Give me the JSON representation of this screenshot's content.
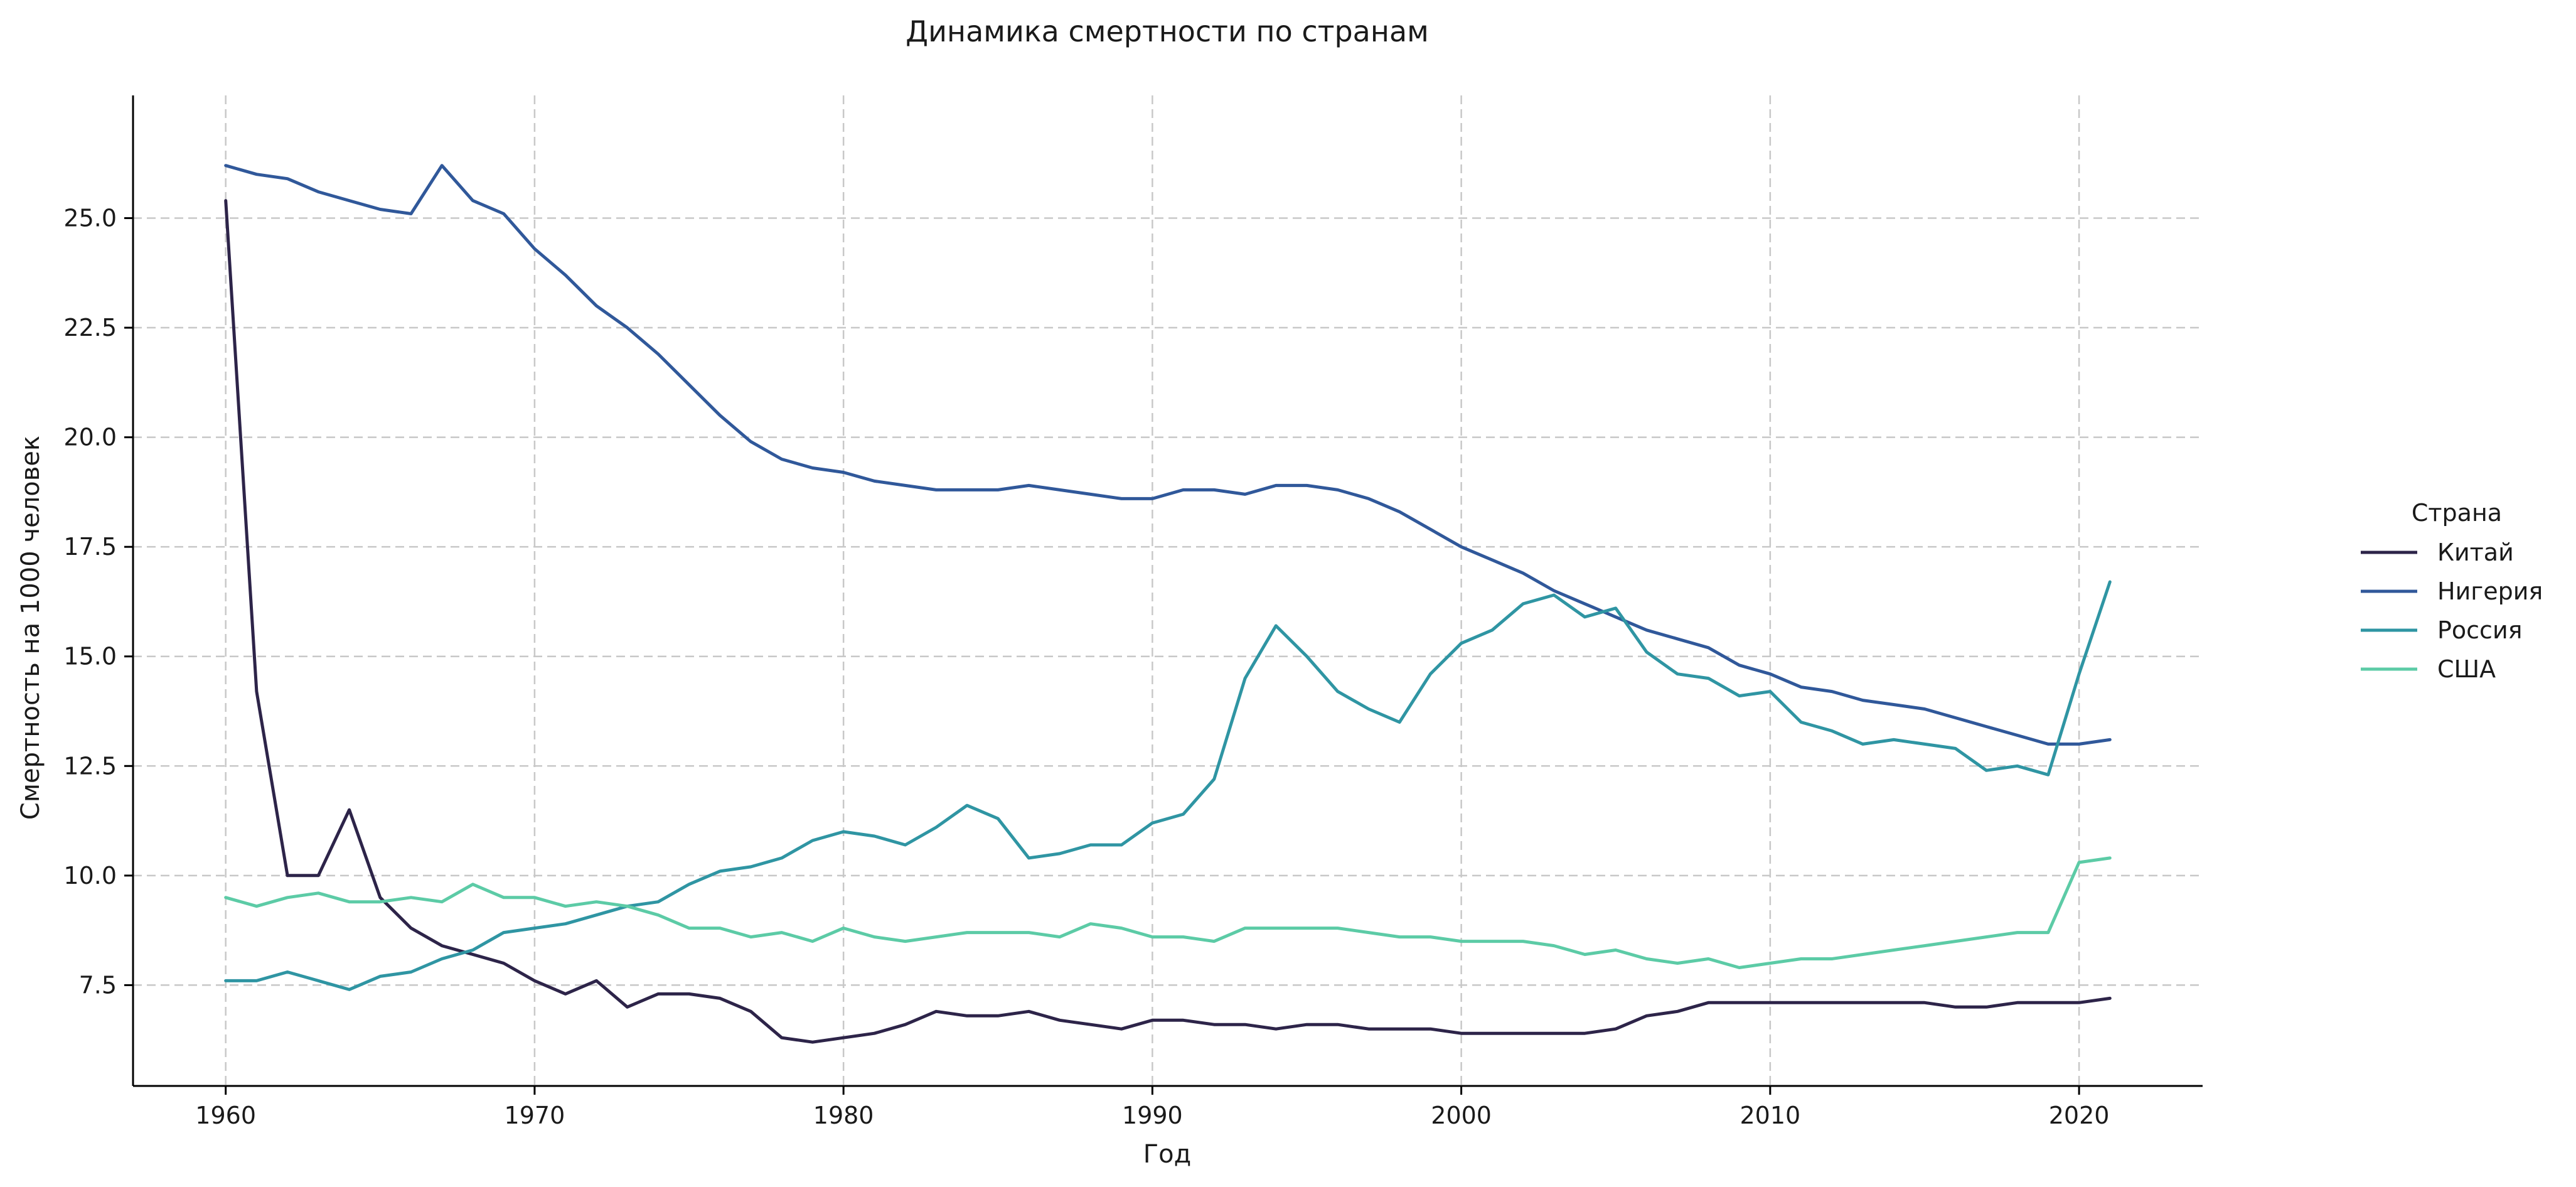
{
  "chart_data": {
    "type": "line",
    "title": "Динамика смертности по странам",
    "xlabel": "Год",
    "ylabel": "Смертность на 1000 человек",
    "xlim": [
      1957,
      2024
    ],
    "ylim": [
      5.2,
      27.8
    ],
    "xticks": [
      1960,
      1970,
      1980,
      1990,
      2000,
      2010,
      2020
    ],
    "yticks": [
      7.5,
      10.0,
      12.5,
      15.0,
      17.5,
      20.0,
      22.5,
      25.0
    ],
    "grid": true,
    "legend": {
      "title": "Страна",
      "placement": "right"
    },
    "x": [
      1960,
      1961,
      1962,
      1963,
      1964,
      1965,
      1966,
      1967,
      1968,
      1969,
      1970,
      1971,
      1972,
      1973,
      1974,
      1975,
      1976,
      1977,
      1978,
      1979,
      1980,
      1981,
      1982,
      1983,
      1984,
      1985,
      1986,
      1987,
      1988,
      1989,
      1990,
      1991,
      1992,
      1993,
      1994,
      1995,
      1996,
      1997,
      1998,
      1999,
      2000,
      2001,
      2002,
      2003,
      2004,
      2005,
      2006,
      2007,
      2008,
      2009,
      2010,
      2011,
      2012,
      2013,
      2014,
      2015,
      2016,
      2017,
      2018,
      2019,
      2020,
      2021
    ],
    "series": [
      {
        "name": "Китай",
        "color": "#2d2449",
        "values": [
          25.4,
          14.2,
          10.0,
          10.0,
          11.5,
          9.5,
          8.8,
          8.4,
          8.2,
          8.0,
          7.6,
          7.3,
          7.6,
          7.0,
          7.3,
          7.3,
          7.2,
          6.9,
          6.3,
          6.2,
          6.3,
          6.4,
          6.6,
          6.9,
          6.8,
          6.8,
          6.9,
          6.7,
          6.6,
          6.5,
          6.7,
          6.7,
          6.6,
          6.6,
          6.5,
          6.6,
          6.6,
          6.5,
          6.5,
          6.5,
          6.4,
          6.4,
          6.4,
          6.4,
          6.4,
          6.5,
          6.8,
          6.9,
          7.1,
          7.1,
          7.1,
          7.1,
          7.1,
          7.1,
          7.1,
          7.1,
          7.0,
          7.0,
          7.1,
          7.1,
          7.1,
          7.2
        ]
      },
      {
        "name": "Нигерия",
        "color": "#30589a",
        "values": [
          26.2,
          26.0,
          25.9,
          25.6,
          25.4,
          25.2,
          25.1,
          26.2,
          25.4,
          25.1,
          24.3,
          23.7,
          23.0,
          22.5,
          21.9,
          21.2,
          20.5,
          19.9,
          19.5,
          19.3,
          19.2,
          19.0,
          18.9,
          18.8,
          18.8,
          18.8,
          18.9,
          18.8,
          18.7,
          18.6,
          18.6,
          18.8,
          18.8,
          18.7,
          18.9,
          18.9,
          18.8,
          18.6,
          18.3,
          17.9,
          17.5,
          17.2,
          16.9,
          16.5,
          16.2,
          15.9,
          15.6,
          15.4,
          15.2,
          14.8,
          14.6,
          14.3,
          14.2,
          14.0,
          13.9,
          13.8,
          13.6,
          13.4,
          13.2,
          13.0,
          13.0,
          13.1
        ]
      },
      {
        "name": "Россия",
        "color": "#2f95a3",
        "values": [
          7.6,
          7.6,
          7.8,
          7.6,
          7.4,
          7.7,
          7.8,
          8.1,
          8.3,
          8.7,
          8.8,
          8.9,
          9.1,
          9.3,
          9.4,
          9.8,
          10.1,
          10.2,
          10.4,
          10.8,
          11.0,
          10.9,
          10.7,
          11.1,
          11.6,
          11.3,
          10.4,
          10.5,
          10.7,
          10.7,
          11.2,
          11.4,
          12.2,
          14.5,
          15.7,
          15.0,
          14.2,
          13.8,
          13.5,
          14.6,
          15.3,
          15.6,
          16.2,
          16.4,
          15.9,
          16.1,
          15.1,
          14.6,
          14.5,
          14.1,
          14.2,
          13.5,
          13.3,
          13.0,
          13.1,
          13.0,
          12.9,
          12.4,
          12.5,
          12.3,
          14.6,
          16.7
        ]
      },
      {
        "name": "США",
        "color": "#5ccba6",
        "values": [
          9.5,
          9.3,
          9.5,
          9.6,
          9.4,
          9.4,
          9.5,
          9.4,
          9.8,
          9.5,
          9.5,
          9.3,
          9.4,
          9.3,
          9.1,
          8.8,
          8.8,
          8.6,
          8.7,
          8.5,
          8.8,
          8.6,
          8.5,
          8.6,
          8.7,
          8.7,
          8.7,
          8.6,
          8.9,
          8.8,
          8.6,
          8.6,
          8.5,
          8.8,
          8.8,
          8.8,
          8.8,
          8.7,
          8.6,
          8.6,
          8.5,
          8.5,
          8.5,
          8.4,
          8.2,
          8.3,
          8.1,
          8.0,
          8.1,
          7.9,
          8.0,
          8.1,
          8.1,
          8.2,
          8.3,
          8.4,
          8.5,
          8.6,
          8.7,
          8.7,
          10.3,
          10.4
        ]
      }
    ]
  }
}
